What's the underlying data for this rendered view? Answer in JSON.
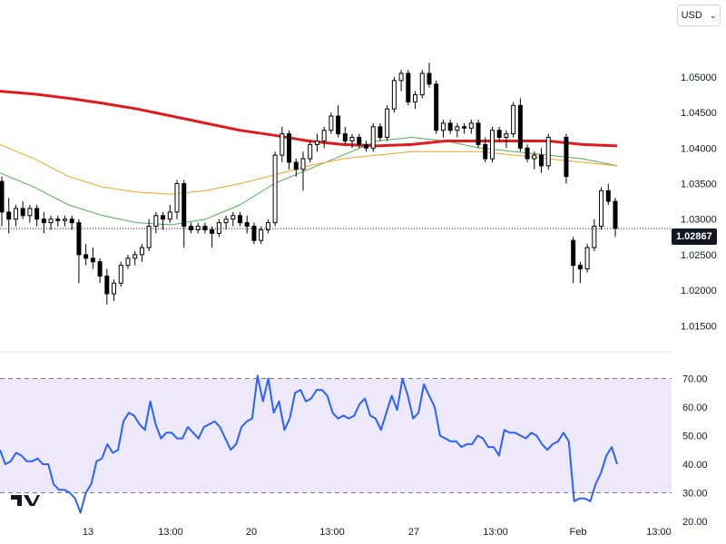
{
  "toolbar": {
    "currency": "USD",
    "chevron": "⌄"
  },
  "logo": {
    "text": "TV"
  },
  "last_price_label": "1.02867",
  "colors": {
    "up": "#ffffff",
    "down": "#000000",
    "ma_long": "#e31a1c",
    "ma_mid": "#ff9f1a",
    "ma_short": "#4caf50",
    "rsi": "#2962ff",
    "rsi_band": "#ede9fb"
  },
  "chart_data": [
    {
      "type": "candlestick",
      "title": "",
      "yticks": [
        "1.05000",
        "1.04500",
        "1.04000",
        "1.03500",
        "1.03000",
        "1.02500",
        "1.02000",
        "1.01500"
      ],
      "ylim": [
        1.013,
        1.057
      ],
      "xticks": [
        "13",
        "13:00",
        "20",
        "13:00",
        "27",
        "13:00",
        "Feb",
        "13:00"
      ],
      "last_price": 1.02867,
      "candles": [
        [
          1.0353,
          1.036,
          1.029,
          1.031
        ],
        [
          1.031,
          1.033,
          1.028,
          1.03
        ],
        [
          1.03,
          1.032,
          1.029,
          1.0315
        ],
        [
          1.0315,
          1.0325,
          1.03,
          1.0305
        ],
        [
          1.0305,
          1.032,
          1.0295,
          1.0315
        ],
        [
          1.0315,
          1.032,
          1.029,
          1.03
        ],
        [
          1.03,
          1.031,
          1.028,
          1.0295
        ],
        [
          1.0295,
          1.0305,
          1.0285,
          1.03
        ],
        [
          1.03,
          1.0305,
          1.029,
          1.0298
        ],
        [
          1.0298,
          1.0305,
          1.029,
          1.03
        ],
        [
          1.03,
          1.0305,
          1.0285,
          1.0295
        ],
        [
          1.0295,
          1.03,
          1.021,
          1.025
        ],
        [
          1.025,
          1.0265,
          1.0235,
          1.0245
        ],
        [
          1.0245,
          1.026,
          1.023,
          1.024
        ],
        [
          1.024,
          1.0245,
          1.021,
          1.022
        ],
        [
          1.022,
          1.023,
          1.018,
          1.0195
        ],
        [
          1.0195,
          1.0215,
          1.0185,
          1.021
        ],
        [
          1.021,
          1.024,
          1.0205,
          1.0235
        ],
        [
          1.0235,
          1.025,
          1.023,
          1.0245
        ],
        [
          1.0245,
          1.0255,
          1.0235,
          1.025
        ],
        [
          1.025,
          1.0265,
          1.024,
          1.026
        ],
        [
          1.026,
          1.03,
          1.0255,
          1.029
        ],
        [
          1.029,
          1.031,
          1.028,
          1.0305
        ],
        [
          1.0305,
          1.031,
          1.0285,
          1.03
        ],
        [
          1.03,
          1.032,
          1.0295,
          1.031
        ],
        [
          1.031,
          1.0355,
          1.03,
          1.035
        ],
        [
          1.035,
          1.0355,
          1.026,
          1.029
        ],
        [
          1.029,
          1.0295,
          1.028,
          1.0285
        ],
        [
          1.0285,
          1.0295,
          1.028,
          1.029
        ],
        [
          1.029,
          1.0295,
          1.028,
          1.0285
        ],
        [
          1.0285,
          1.029,
          1.026,
          1.028
        ],
        [
          1.028,
          1.03,
          1.0275,
          1.0295
        ],
        [
          1.0295,
          1.0305,
          1.0285,
          1.03
        ],
        [
          1.03,
          1.031,
          1.029,
          1.0305
        ],
        [
          1.0305,
          1.031,
          1.029,
          1.0295
        ],
        [
          1.0295,
          1.0305,
          1.028,
          1.029
        ],
        [
          1.029,
          1.0295,
          1.0265,
          1.027
        ],
        [
          1.027,
          1.029,
          1.0265,
          1.0285
        ],
        [
          1.0285,
          1.03,
          1.028,
          1.0295
        ],
        [
          1.0295,
          1.0395,
          1.029,
          1.039
        ],
        [
          1.039,
          1.043,
          1.038,
          1.042
        ],
        [
          1.042,
          1.0425,
          1.037,
          1.038
        ],
        [
          1.038,
          1.0385,
          1.036,
          1.037
        ],
        [
          1.037,
          1.0395,
          1.034,
          1.0385
        ],
        [
          1.0385,
          1.041,
          1.038,
          1.0405
        ],
        [
          1.0405,
          1.042,
          1.0395,
          1.041
        ],
        [
          1.041,
          1.043,
          1.04,
          1.0425
        ],
        [
          1.0425,
          1.045,
          1.042,
          1.0445
        ],
        [
          1.0445,
          1.046,
          1.0415,
          1.042
        ],
        [
          1.042,
          1.043,
          1.0405,
          1.041
        ],
        [
          1.041,
          1.042,
          1.04,
          1.0415
        ],
        [
          1.0415,
          1.042,
          1.04,
          1.0405
        ],
        [
          1.0405,
          1.041,
          1.0395,
          1.04
        ],
        [
          1.04,
          1.0435,
          1.0395,
          1.043
        ],
        [
          1.043,
          1.0435,
          1.041,
          1.0415
        ],
        [
          1.0415,
          1.046,
          1.041,
          1.0455
        ],
        [
          1.0455,
          1.05,
          1.045,
          1.0495
        ],
        [
          1.0495,
          1.051,
          1.048,
          1.0505
        ],
        [
          1.0505,
          1.051,
          1.046,
          1.0465
        ],
        [
          1.0465,
          1.048,
          1.0455,
          1.0475
        ],
        [
          1.0475,
          1.051,
          1.047,
          1.0505
        ],
        [
          1.0505,
          1.052,
          1.0485,
          1.049
        ],
        [
          1.049,
          1.0495,
          1.042,
          1.0425
        ],
        [
          1.0425,
          1.044,
          1.0415,
          1.0435
        ],
        [
          1.0435,
          1.044,
          1.042,
          1.0425
        ],
        [
          1.0425,
          1.0435,
          1.0415,
          1.043
        ],
        [
          1.043,
          1.0435,
          1.042,
          1.0428
        ],
        [
          1.0428,
          1.044,
          1.042,
          1.0435
        ],
        [
          1.0435,
          1.044,
          1.04,
          1.0405
        ],
        [
          1.0405,
          1.0415,
          1.038,
          1.0385
        ],
        [
          1.0385,
          1.043,
          1.038,
          1.0425
        ],
        [
          1.0425,
          1.043,
          1.041,
          1.0415
        ],
        [
          1.0415,
          1.0425,
          1.04,
          1.042
        ],
        [
          1.042,
          1.0465,
          1.0415,
          1.046
        ],
        [
          1.046,
          1.047,
          1.0395,
          1.04
        ],
        [
          1.04,
          1.0405,
          1.038,
          1.0385
        ],
        [
          1.0385,
          1.0395,
          1.037,
          1.039
        ],
        [
          1.039,
          1.04,
          1.0365,
          1.0375
        ],
        [
          1.0375,
          1.042,
          1.037,
          1.0415
        ],
        [
          1.0415,
          1.042,
          1.035,
          1.036
        ],
        [
          1.027,
          1.0275,
          1.021,
          1.0235
        ],
        [
          1.0235,
          1.024,
          1.021,
          1.023
        ],
        [
          1.023,
          1.0265,
          1.0225,
          1.026
        ],
        [
          1.026,
          1.03,
          1.0255,
          1.029
        ],
        [
          1.029,
          1.0345,
          1.0285,
          1.034
        ],
        [
          1.034,
          1.035,
          1.032,
          1.0325
        ],
        [
          1.0325,
          1.033,
          1.0275,
          1.0287
        ]
      ],
      "ma_long": [
        1.048,
        1.0476,
        1.047,
        1.0463,
        1.0455,
        1.0445,
        1.0435,
        1.0425,
        1.0418,
        1.041,
        1.0405,
        1.0403,
        1.0405,
        1.041,
        1.041,
        1.041,
        1.041,
        1.0405,
        1.0403
      ],
      "ma_mid": [
        1.0405,
        1.0385,
        1.036,
        1.0345,
        1.0338,
        1.0335,
        1.034,
        1.035,
        1.0362,
        1.0375,
        1.0385,
        1.039,
        1.0395,
        1.0395,
        1.0395,
        1.039,
        1.0385,
        1.038,
        1.0375
      ],
      "ma_short": [
        1.0365,
        1.0345,
        1.032,
        1.0305,
        1.0295,
        1.0292,
        1.03,
        1.032,
        1.035,
        1.037,
        1.039,
        1.041,
        1.0415,
        1.041,
        1.04,
        1.0395,
        1.039,
        1.0385,
        1.0375
      ]
    },
    {
      "type": "line",
      "title": "",
      "yticks": [
        "70.00",
        "60.00",
        "50.00",
        "40.00",
        "30.00",
        "20.00"
      ],
      "ylim": [
        20,
        73
      ],
      "band": [
        30,
        70
      ],
      "values": [
        45,
        40,
        41,
        44,
        43,
        41,
        41,
        42,
        40,
        40,
        33,
        31,
        31,
        30,
        28,
        23,
        30,
        33,
        41,
        42,
        47,
        44,
        45,
        55,
        58,
        57,
        54,
        52,
        62,
        54,
        49,
        51,
        51,
        49,
        49,
        53,
        51,
        49,
        53,
        54,
        55,
        53,
        49,
        45,
        47,
        53,
        55,
        56,
        71,
        62,
        70,
        58,
        62,
        52,
        56,
        65,
        66,
        62,
        63,
        66,
        66,
        64,
        58,
        56,
        57,
        56,
        57,
        61,
        63,
        57,
        56,
        52,
        58,
        64,
        59,
        70,
        64,
        56,
        58,
        68,
        64,
        60,
        50,
        49,
        48,
        48,
        46,
        47,
        47,
        50,
        49,
        46,
        46,
        43,
        52,
        51,
        51,
        50,
        49,
        51,
        50,
        47,
        45,
        47,
        48,
        51,
        48,
        27,
        28,
        28,
        27,
        33,
        37,
        43,
        46,
        40
      ]
    }
  ]
}
